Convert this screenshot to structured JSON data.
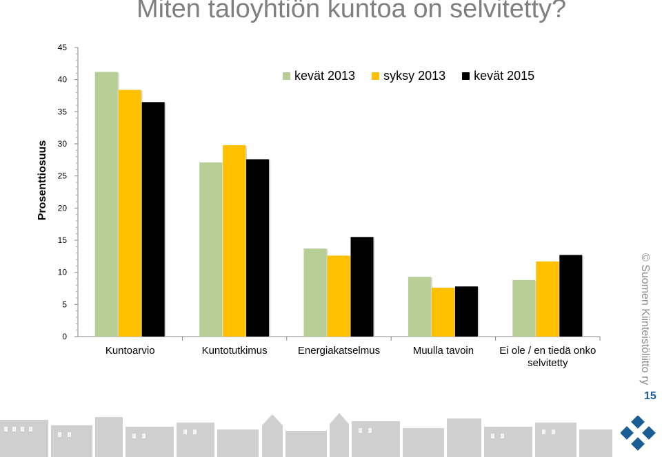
{
  "title": "Miten taloyhtiön kuntoa on selvitetty?",
  "copyright": "© Suomen Kiinteistöliitto ry",
  "page_number": "15",
  "colors": {
    "series_1": "#b7cf97",
    "series_2": "#ffc000",
    "series_3": "#000000",
    "title": "#7f7f7f",
    "brand_blue": "#1b5e96"
  },
  "chart_data": {
    "type": "bar",
    "ylabel": "Prosenttiosuus",
    "xlabel": "",
    "ylim": [
      0,
      45
    ],
    "yticks": [
      0,
      5,
      10,
      15,
      20,
      25,
      30,
      35,
      40,
      45
    ],
    "legend_position": "top-right",
    "categories": [
      "Kuntoarvio",
      "Kuntotutkimus",
      "Energiakatselmus",
      "Muulla tavoin",
      "Ei ole / en tiedä onko selvitetty"
    ],
    "series": [
      {
        "name": "kevät 2013",
        "values": [
          41.2,
          27.1,
          13.7,
          9.3,
          8.8
        ]
      },
      {
        "name": "syksy 2013",
        "values": [
          38.4,
          29.8,
          12.6,
          7.6,
          11.7
        ]
      },
      {
        "name": "kevät 2015",
        "values": [
          36.5,
          27.6,
          15.5,
          7.8,
          12.7
        ]
      }
    ]
  }
}
